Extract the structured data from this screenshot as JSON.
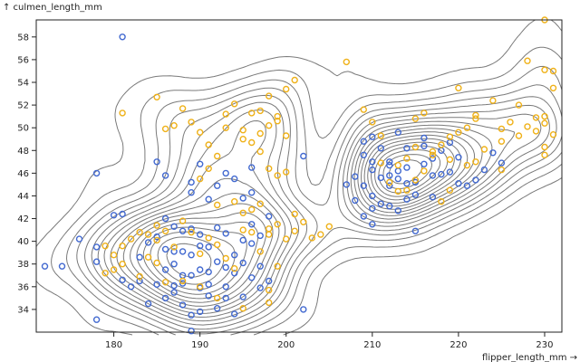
{
  "chart_data": {
    "type": "scatter",
    "title": "",
    "xlabel": "flipper_length_mm →",
    "ylabel": "↑ culmen_length_mm",
    "xlim": [
      171,
      232
    ],
    "ylim": [
      32,
      59.5
    ],
    "x_ticks": [
      180,
      190,
      200,
      210,
      220,
      230
    ],
    "y_ticks": [
      34,
      36,
      38,
      40,
      42,
      44,
      46,
      48,
      50,
      52,
      54,
      56,
      58
    ],
    "grid": false,
    "legend": "none",
    "colors": {
      "series_a": "#4269d0",
      "series_b": "#efb118",
      "contour": "#7a7a7a"
    },
    "density_contours": {
      "description_levels": 18,
      "clusters": [
        {
          "x": 188.5,
          "y": 38.5,
          "weight": 1.0
        },
        {
          "x": 215,
          "y": 46.5,
          "weight": 0.9
        },
        {
          "x": 194,
          "y": 49,
          "weight": 0.45
        },
        {
          "x": 220,
          "y": 49.5,
          "weight": 0.4
        }
      ]
    },
    "series": [
      {
        "name": "blue",
        "points": [
          [
            181,
            58
          ],
          [
            178,
            46
          ],
          [
            180,
            42.3
          ],
          [
            181,
            42.4
          ],
          [
            176,
            40.2
          ],
          [
            172,
            37.8
          ],
          [
            174,
            37.8
          ],
          [
            178,
            39.5
          ],
          [
            178,
            38.2
          ],
          [
            178,
            33.1
          ],
          [
            181,
            36.6
          ],
          [
            182,
            36
          ],
          [
            183,
            36.5
          ],
          [
            184,
            34.5
          ],
          [
            185,
            36.2
          ],
          [
            186,
            37.5
          ],
          [
            186,
            35
          ],
          [
            187,
            38
          ],
          [
            187,
            35.5
          ],
          [
            188,
            34.4
          ],
          [
            188,
            36.3
          ],
          [
            189,
            33.5
          ],
          [
            189,
            37
          ],
          [
            190,
            35.9
          ],
          [
            190,
            33.8
          ],
          [
            190,
            39.6
          ],
          [
            191,
            36.2
          ],
          [
            191,
            35.2
          ],
          [
            192,
            34.1
          ],
          [
            193,
            36
          ],
          [
            193,
            35
          ],
          [
            194,
            33.6
          ],
          [
            195,
            35.1
          ],
          [
            195,
            38.1
          ],
          [
            196,
            36.8
          ],
          [
            197,
            37.8
          ],
          [
            198,
            36.5
          ],
          [
            197,
            35.9
          ],
          [
            202,
            34
          ],
          [
            189,
            32.1
          ],
          [
            185,
            47
          ],
          [
            186,
            45.8
          ],
          [
            189,
            45.2
          ],
          [
            189,
            44.3
          ],
          [
            190,
            46.8
          ],
          [
            191,
            43.7
          ],
          [
            192,
            44.9
          ],
          [
            193,
            46
          ],
          [
            194,
            45.5
          ],
          [
            195,
            43.8
          ],
          [
            196,
            46.5
          ],
          [
            196,
            44.3
          ],
          [
            186,
            42
          ],
          [
            187,
            41.3
          ],
          [
            188,
            40.9
          ],
          [
            188,
            39.1
          ],
          [
            189,
            41.1
          ],
          [
            190,
            40.6
          ],
          [
            191,
            39.5
          ],
          [
            192,
            41.2
          ],
          [
            193,
            40.7
          ],
          [
            194,
            38.8
          ],
          [
            195,
            40.1
          ],
          [
            196,
            39.8
          ],
          [
            197,
            40.5
          ],
          [
            198,
            42.2
          ],
          [
            196,
            41.5
          ],
          [
            190,
            37.5
          ],
          [
            192,
            38.2
          ],
          [
            189,
            38.8
          ],
          [
            186,
            39.3
          ],
          [
            184,
            39.9
          ],
          [
            183,
            38.6
          ],
          [
            185,
            40.4
          ],
          [
            187,
            39.1
          ],
          [
            194,
            37.2
          ],
          [
            191,
            37.3
          ],
          [
            193,
            37.7
          ],
          [
            188,
            37
          ],
          [
            187,
            36.1
          ],
          [
            202,
            47.5
          ],
          [
            209,
            47.6
          ],
          [
            209,
            48.8
          ],
          [
            210,
            46.3
          ],
          [
            210,
            44
          ],
          [
            210,
            42.9
          ],
          [
            210,
            41.5
          ],
          [
            211,
            45.6
          ],
          [
            211,
            43.3
          ],
          [
            212,
            47
          ],
          [
            212,
            44.9
          ],
          [
            212,
            43.1
          ],
          [
            213,
            46.2
          ],
          [
            213,
            45.5
          ],
          [
            213,
            42.7
          ],
          [
            214,
            48.2
          ],
          [
            214,
            46.5
          ],
          [
            215,
            45.2
          ],
          [
            215,
            44.1
          ],
          [
            216,
            46.8
          ],
          [
            216,
            49.1
          ],
          [
            217,
            47.3
          ],
          [
            217,
            45.8
          ],
          [
            218,
            48
          ],
          [
            219,
            46.1
          ],
          [
            219,
            48.7
          ],
          [
            220,
            47.4
          ],
          [
            221,
            44.9
          ],
          [
            222,
            45.4
          ],
          [
            223,
            46.3
          ],
          [
            224,
            47.8
          ],
          [
            225,
            46.9
          ],
          [
            215,
            40.9
          ],
          [
            209,
            44.9
          ],
          [
            210,
            47
          ],
          [
            208,
            45.7
          ],
          [
            207,
            45
          ],
          [
            208,
            43.6
          ],
          [
            209,
            42.2
          ],
          [
            213,
            49.6
          ],
          [
            216,
            48.4
          ],
          [
            214,
            45.1
          ],
          [
            218,
            45.9
          ],
          [
            211,
            48.2
          ],
          [
            212,
            45.8
          ],
          [
            217,
            43.9
          ],
          [
            212,
            46.7
          ],
          [
            214,
            43.7
          ],
          [
            210,
            49.2
          ],
          [
            220,
            45.1
          ]
        ]
      },
      {
        "name": "gold",
        "points": [
          [
            230,
            59.5
          ],
          [
            231,
            55
          ],
          [
            228,
            55.9
          ],
          [
            230,
            55.1
          ],
          [
            231,
            53.5
          ],
          [
            230,
            51
          ],
          [
            229,
            50.9
          ],
          [
            230,
            50.4
          ],
          [
            229,
            49.7
          ],
          [
            230,
            48.3
          ],
          [
            230,
            47.6
          ],
          [
            231,
            49.4
          ],
          [
            228,
            50.1
          ],
          [
            227,
            49.3
          ],
          [
            226,
            50.5
          ],
          [
            225,
            49.9
          ],
          [
            225,
            48.8
          ],
          [
            224,
            52.4
          ],
          [
            222,
            51.1
          ],
          [
            222,
            50.8
          ],
          [
            221,
            50
          ],
          [
            220,
            49.6
          ],
          [
            219,
            49.2
          ],
          [
            219,
            47.2
          ],
          [
            218,
            48.5
          ],
          [
            217,
            47.6
          ],
          [
            216,
            46.2
          ],
          [
            215,
            45.4
          ],
          [
            214,
            47.3
          ],
          [
            213,
            44.4
          ],
          [
            212,
            45.2
          ],
          [
            211,
            46.9
          ],
          [
            210,
            50.5
          ],
          [
            209,
            51.6
          ],
          [
            220,
            53.5
          ],
          [
            207,
            55.8
          ],
          [
            215,
            50.8
          ],
          [
            223,
            48.1
          ],
          [
            222,
            47
          ],
          [
            221,
            46.7
          ],
          [
            219,
            44.5
          ],
          [
            218,
            43.5
          ],
          [
            217,
            47.9
          ],
          [
            216,
            51.3
          ],
          [
            215,
            48.3
          ],
          [
            214,
            44.5
          ],
          [
            213,
            46.7
          ],
          [
            211,
            49.3
          ],
          [
            225,
            46.3
          ],
          [
            227,
            52
          ],
          [
            181,
            51.3
          ],
          [
            185,
            52.7
          ],
          [
            186,
            49.9
          ],
          [
            187,
            50.2
          ],
          [
            188,
            51.7
          ],
          [
            189,
            50.5
          ],
          [
            190,
            49.6
          ],
          [
            191,
            48.5
          ],
          [
            191,
            46.4
          ],
          [
            192,
            47.5
          ],
          [
            193,
            51.2
          ],
          [
            193,
            50
          ],
          [
            194,
            52.1
          ],
          [
            195,
            49.8
          ],
          [
            195,
            49
          ],
          [
            196,
            51.3
          ],
          [
            196,
            48.7
          ],
          [
            197,
            49.5
          ],
          [
            197,
            51.5
          ],
          [
            198,
            50.2
          ],
          [
            198,
            52.8
          ],
          [
            199,
            50.6
          ],
          [
            199,
            51
          ],
          [
            200,
            49.3
          ],
          [
            200,
            53.4
          ],
          [
            201,
            54.2
          ],
          [
            200,
            46.1
          ],
          [
            197,
            47.9
          ],
          [
            198,
            46.4
          ],
          [
            199,
            45.8
          ],
          [
            190,
            45.5
          ],
          [
            192,
            43.2
          ],
          [
            194,
            43.5
          ],
          [
            195,
            42.5
          ],
          [
            196,
            42.8
          ],
          [
            197,
            43.3
          ],
          [
            198,
            41.1
          ],
          [
            198,
            40.6
          ],
          [
            199,
            41.5
          ],
          [
            200,
            40.2
          ],
          [
            201,
            42.4
          ],
          [
            201,
            40.9
          ],
          [
            202,
            41.7
          ],
          [
            203,
            40.3
          ],
          [
            204,
            40.6
          ],
          [
            205,
            41.3
          ],
          [
            186,
            40.9
          ],
          [
            185,
            41.4
          ],
          [
            184,
            40.6
          ],
          [
            183,
            40.8
          ],
          [
            182,
            40.2
          ],
          [
            181,
            39.6
          ],
          [
            180,
            38.8
          ],
          [
            181,
            38
          ],
          [
            179,
            37.2
          ],
          [
            180,
            37.5
          ],
          [
            179,
            39.6
          ],
          [
            183,
            36.9
          ],
          [
            184,
            38.6
          ],
          [
            185,
            38.1
          ],
          [
            186,
            36.4
          ],
          [
            187,
            39.5
          ],
          [
            188,
            36.5
          ],
          [
            189,
            40.8
          ],
          [
            190,
            38.9
          ],
          [
            191,
            40.3
          ],
          [
            192,
            39.7
          ],
          [
            193,
            38.5
          ],
          [
            194,
            37.6
          ],
          [
            195,
            41
          ],
          [
            196,
            40.8
          ],
          [
            197,
            39.1
          ],
          [
            198,
            35.7
          ],
          [
            199,
            37.8
          ],
          [
            198,
            34.6
          ],
          [
            190,
            36
          ],
          [
            192,
            35
          ],
          [
            195,
            34.1
          ],
          [
            185,
            40.1
          ],
          [
            188,
            41.8
          ]
        ]
      }
    ]
  }
}
